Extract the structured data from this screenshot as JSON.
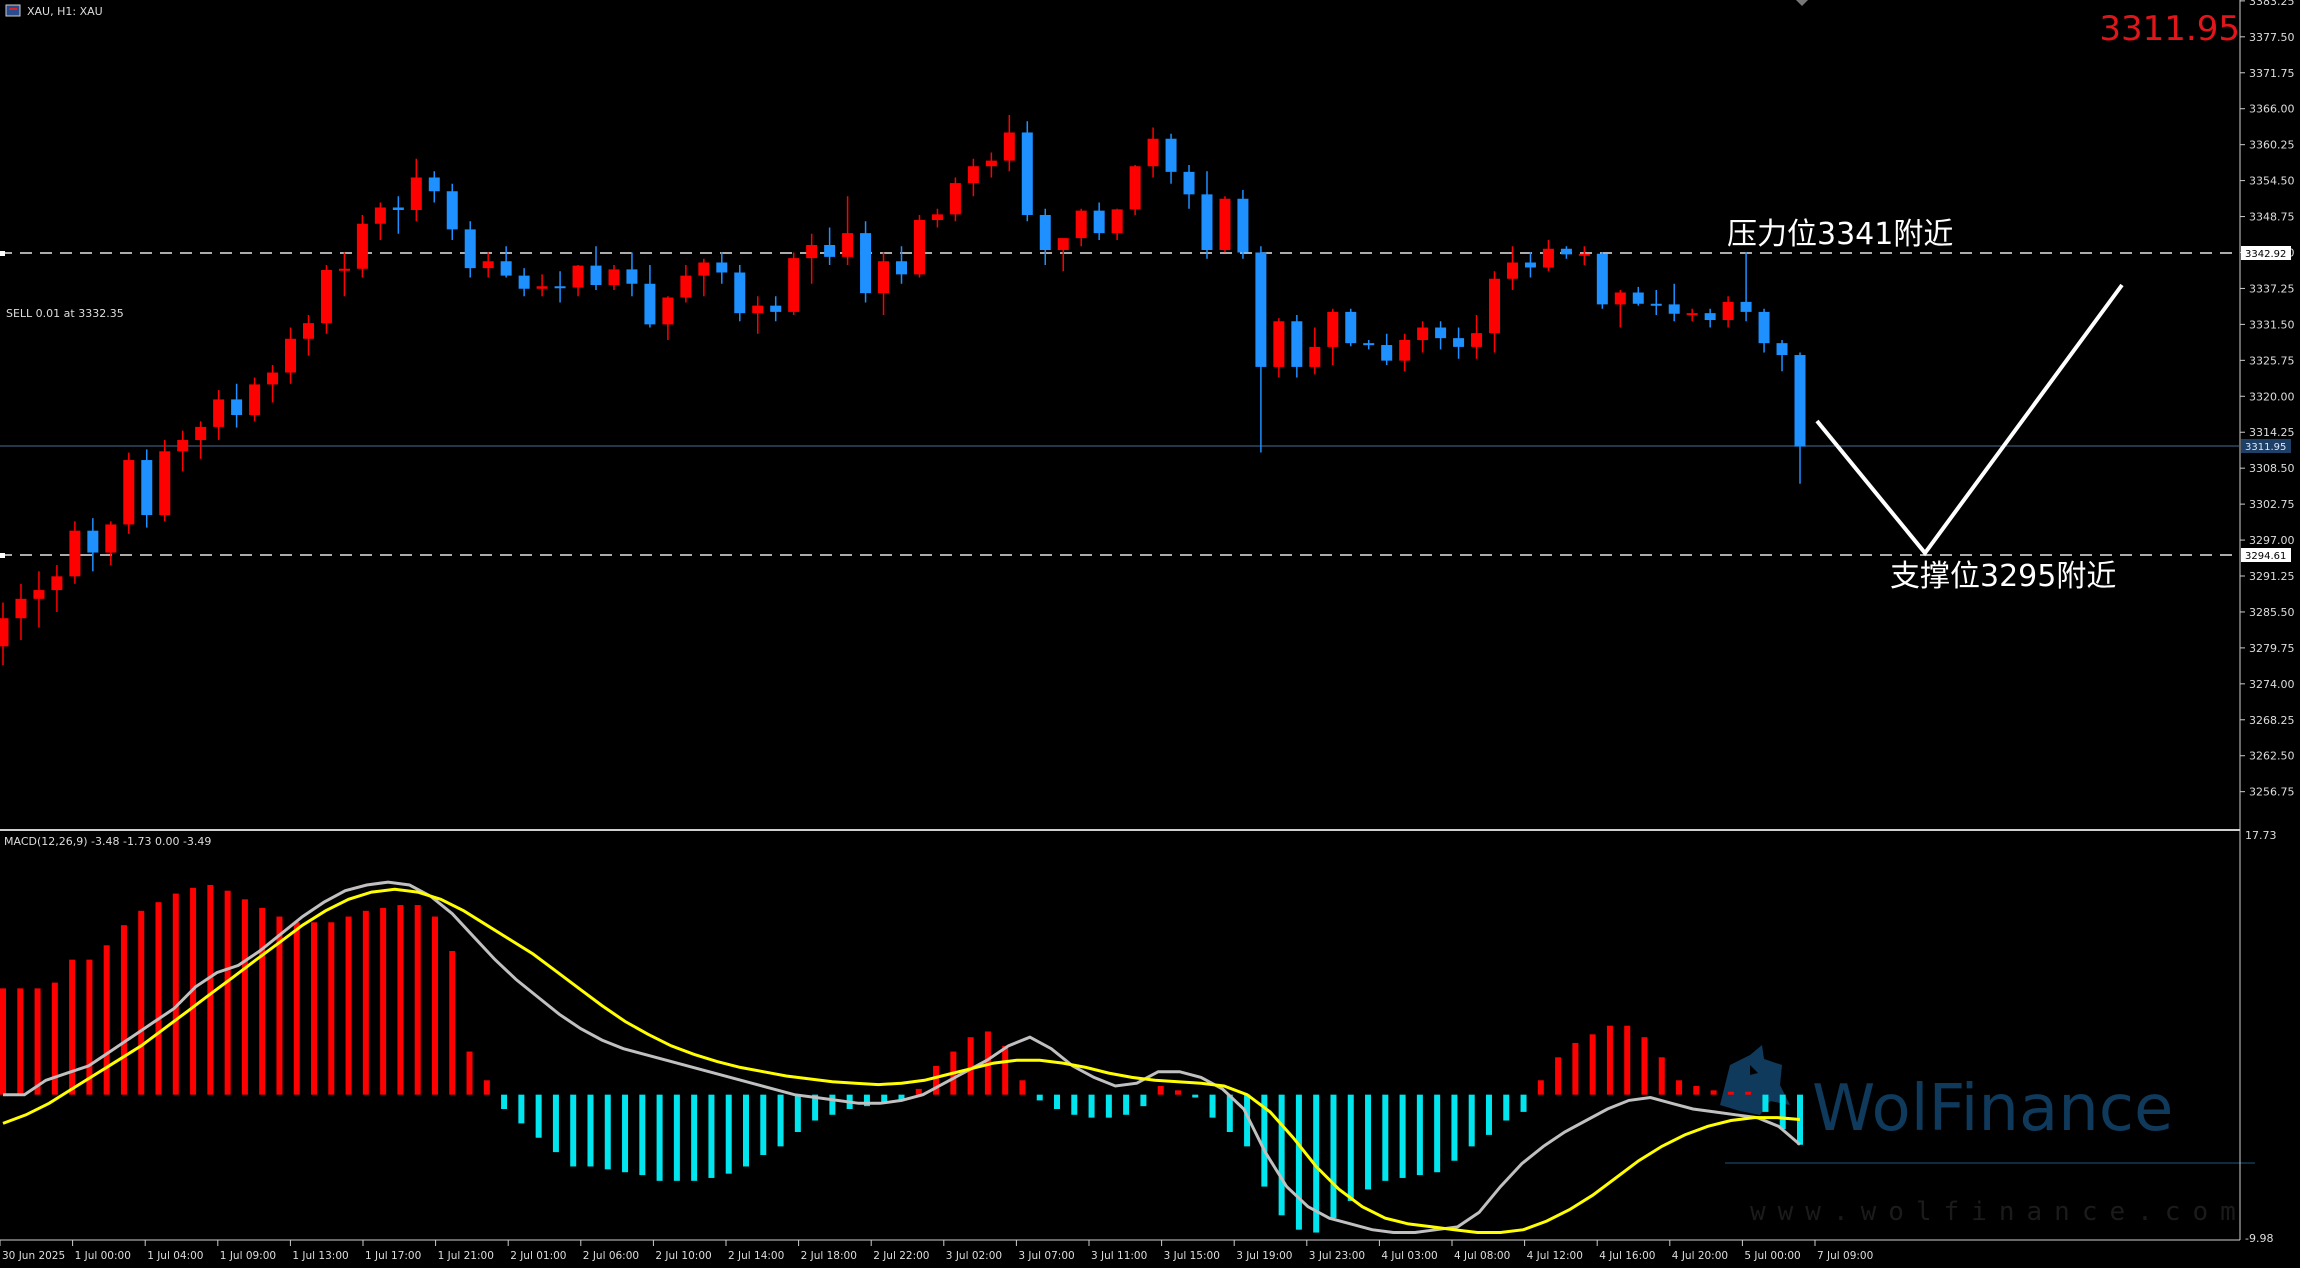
{
  "header": {
    "symbol_label": "XAU, H1: XAU",
    "current_price": "3311.95"
  },
  "order": {
    "label": "SELL 0.01 at 3332.35"
  },
  "annotations": {
    "resistance": "压力位3341附近",
    "support": "支撑位3295附近"
  },
  "price_axis": {
    "ticks": [
      "3383.25",
      "3377.50",
      "3371.75",
      "3366.00",
      "3360.25",
      "3354.50",
      "3348.75",
      "3343.00",
      "3337.25",
      "3331.50",
      "3325.75",
      "3320.00",
      "3314.25",
      "3308.50",
      "3302.75",
      "3297.00",
      "3291.25",
      "3285.50",
      "3279.75",
      "3274.00",
      "3268.25",
      "3262.50",
      "3256.75"
    ],
    "resistance_tag": "3342.92",
    "current_tag": "3311.95",
    "support_tag": "3294.61"
  },
  "macd_panel": {
    "label": "MACD(12,26,9) -3.48 -1.73 0.00 -3.49",
    "max_label": "17.73",
    "min_label": "-9.98"
  },
  "time_axis": [
    "30 Jun 2025",
    "1 Jul 00:00",
    "1 Jul 04:00",
    "1 Jul 09:00",
    "1 Jul 13:00",
    "1 Jul 17:00",
    "1 Jul 21:00",
    "2 Jul 01:00",
    "2 Jul 06:00",
    "2 Jul 10:00",
    "2 Jul 14:00",
    "2 Jul 18:00",
    "2 Jul 22:00",
    "3 Jul 02:00",
    "3 Jul 07:00",
    "3 Jul 11:00",
    "3 Jul 15:00",
    "3 Jul 19:00",
    "3 Jul 23:00",
    "4 Jul 03:00",
    "4 Jul 08:00",
    "4 Jul 12:00",
    "4 Jul 16:00",
    "4 Jul 20:00",
    "5 Jul 00:00",
    "7 Jul 09:00"
  ],
  "watermark": {
    "brand": "WolFinance",
    "url": "www.wolfinance.com"
  },
  "colors": {
    "bull": "#ff0000",
    "bear": "#1e90ff",
    "hist_pos": "#ff0000",
    "hist_neg": "#00e5ee",
    "macd_line": "#c0c0c0",
    "signal_line": "#ffff00",
    "price_text": "#e0161b"
  },
  "chart_data": {
    "type": "candlestick",
    "symbol": "XAU",
    "timeframe": "H1",
    "ohlc": [
      [
        3280.0,
        3287.0,
        3277.0,
        3284.5
      ],
      [
        3284.5,
        3290.0,
        3281.0,
        3287.6
      ],
      [
        3287.6,
        3292.0,
        3283.0,
        3289.0
      ],
      [
        3289.0,
        3293.0,
        3285.5,
        3291.2
      ],
      [
        3291.2,
        3300.0,
        3290.0,
        3298.5
      ],
      [
        3298.5,
        3300.5,
        3292.0,
        3295.0
      ],
      [
        3295.0,
        3300.0,
        3293.0,
        3299.5
      ],
      [
        3299.5,
        3311.0,
        3298.0,
        3309.8
      ],
      [
        3309.8,
        3311.5,
        3299.0,
        3301.0
      ],
      [
        3301.0,
        3313.0,
        3300.0,
        3311.2
      ],
      [
        3311.2,
        3314.5,
        3308.0,
        3313.0
      ],
      [
        3313.0,
        3316.0,
        3310.0,
        3315.1
      ],
      [
        3315.1,
        3321.0,
        3313.0,
        3319.5
      ],
      [
        3319.5,
        3322.0,
        3315.0,
        3317.0
      ],
      [
        3317.0,
        3323.0,
        3316.0,
        3321.9
      ],
      [
        3321.9,
        3325.0,
        3319.0,
        3323.8
      ],
      [
        3323.8,
        3331.0,
        3322.0,
        3329.2
      ],
      [
        3329.2,
        3333.0,
        3326.5,
        3331.7
      ],
      [
        3331.7,
        3341.0,
        3330.0,
        3340.2
      ],
      [
        3340.2,
        3343.0,
        3336.0,
        3340.4
      ],
      [
        3340.4,
        3349.0,
        3339.0,
        3347.6
      ],
      [
        3347.6,
        3351.0,
        3345.0,
        3350.2
      ],
      [
        3350.2,
        3352.0,
        3346.0,
        3349.8
      ],
      [
        3349.8,
        3358.0,
        3348.0,
        3355.0
      ],
      [
        3355.0,
        3356.0,
        3351.0,
        3352.8
      ],
      [
        3352.8,
        3354.0,
        3345.0,
        3346.7
      ],
      [
        3346.7,
        3348.0,
        3339.0,
        3340.5
      ],
      [
        3340.5,
        3343.0,
        3339.0,
        3341.6
      ],
      [
        3341.6,
        3344.0,
        3339.0,
        3339.3
      ],
      [
        3339.3,
        3340.5,
        3336.0,
        3337.2
      ],
      [
        3337.2,
        3339.5,
        3336.0,
        3337.6
      ],
      [
        3337.6,
        3340.0,
        3335.0,
        3337.4
      ],
      [
        3337.4,
        3341.0,
        3336.0,
        3340.9
      ],
      [
        3340.9,
        3344.0,
        3337.0,
        3337.8
      ],
      [
        3337.8,
        3341.0,
        3337.0,
        3340.3
      ],
      [
        3340.3,
        3343.0,
        3336.0,
        3338.0
      ],
      [
        3338.0,
        3341.0,
        3331.0,
        3331.5
      ],
      [
        3331.5,
        3336.0,
        3329.0,
        3335.8
      ],
      [
        3335.8,
        3341.0,
        3335.0,
        3339.3
      ],
      [
        3339.3,
        3342.0,
        3336.0,
        3341.4
      ],
      [
        3341.4,
        3343.0,
        3338.0,
        3339.8
      ],
      [
        3339.8,
        3341.0,
        3332.0,
        3333.3
      ],
      [
        3333.3,
        3336.0,
        3330.0,
        3334.5
      ],
      [
        3334.5,
        3336.0,
        3332.0,
        3333.5
      ],
      [
        3333.5,
        3343.0,
        3333.0,
        3342.1
      ],
      [
        3342.1,
        3346.0,
        3338.0,
        3344.2
      ],
      [
        3344.2,
        3347.0,
        3341.0,
        3342.3
      ],
      [
        3342.3,
        3352.0,
        3341.0,
        3346.1
      ],
      [
        3346.1,
        3348.0,
        3335.0,
        3336.5
      ],
      [
        3336.5,
        3343.0,
        3333.0,
        3341.6
      ],
      [
        3341.6,
        3344.0,
        3338.0,
        3339.5
      ],
      [
        3339.5,
        3349.0,
        3339.0,
        3348.2
      ],
      [
        3348.2,
        3350.0,
        3347.0,
        3349.1
      ],
      [
        3349.1,
        3355.0,
        3348.0,
        3354.1
      ],
      [
        3354.1,
        3358.0,
        3352.0,
        3356.8
      ],
      [
        3356.8,
        3359.0,
        3355.0,
        3357.7
      ],
      [
        3357.7,
        3365.0,
        3356.0,
        3362.2
      ],
      [
        3362.2,
        3364.0,
        3348.0,
        3349.0
      ],
      [
        3349.0,
        3350.0,
        3341.0,
        3343.4
      ],
      [
        3343.4,
        3345.0,
        3340.0,
        3345.3
      ],
      [
        3345.3,
        3350.0,
        3344.0,
        3349.7
      ],
      [
        3349.7,
        3351.0,
        3345.0,
        3346.1
      ],
      [
        3346.1,
        3350.0,
        3345.0,
        3349.9
      ],
      [
        3349.9,
        3357.0,
        3349.0,
        3356.8
      ],
      [
        3356.8,
        3363.0,
        3355.0,
        3361.2
      ],
      [
        3361.2,
        3362.0,
        3354.0,
        3355.9
      ],
      [
        3355.9,
        3357.0,
        3350.0,
        3352.3
      ],
      [
        3352.3,
        3356.0,
        3342.0,
        3343.4
      ],
      [
        3343.4,
        3352.0,
        3343.0,
        3351.6
      ],
      [
        3351.6,
        3353.0,
        3342.0,
        3343.0
      ],
      [
        3343.0,
        3344.0,
        3311.0,
        3324.7
      ],
      [
        3324.7,
        3332.5,
        3323.0,
        3332.0
      ],
      [
        3332.0,
        3333.0,
        3323.0,
        3324.7
      ],
      [
        3324.7,
        3331.0,
        3323.5,
        3327.9
      ],
      [
        3327.9,
        3334.0,
        3325.0,
        3333.5
      ],
      [
        3333.5,
        3334.0,
        3328.0,
        3328.5
      ],
      [
        3328.5,
        3329.0,
        3327.5,
        3328.2
      ],
      [
        3328.2,
        3330.0,
        3325.0,
        3325.7
      ],
      [
        3325.7,
        3330.0,
        3324.0,
        3329.0
      ],
      [
        3329.0,
        3332.0,
        3327.0,
        3331.0
      ],
      [
        3331.0,
        3332.0,
        3327.5,
        3329.3
      ],
      [
        3329.3,
        3331.0,
        3326.0,
        3327.9
      ],
      [
        3327.9,
        3333.0,
        3326.0,
        3330.1
      ],
      [
        3330.1,
        3340.0,
        3327.0,
        3338.8
      ],
      [
        3338.8,
        3344.0,
        3337.0,
        3341.4
      ],
      [
        3341.4,
        3343.0,
        3339.0,
        3340.6
      ],
      [
        3340.6,
        3345.0,
        3340.0,
        3343.6
      ],
      [
        3343.6,
        3344.0,
        3342.0,
        3342.7
      ],
      [
        3342.7,
        3344.0,
        3341.0,
        3342.8
      ],
      [
        3342.8,
        3343.0,
        3334.0,
        3334.7
      ],
      [
        3334.7,
        3337.0,
        3331.0,
        3336.6
      ],
      [
        3336.6,
        3337.5,
        3334.5,
        3334.8
      ],
      [
        3334.8,
        3337.0,
        3333.0,
        3334.7
      ],
      [
        3334.7,
        3338.0,
        3332.0,
        3333.2
      ],
      [
        3333.2,
        3334.0,
        3332.0,
        3333.3
      ],
      [
        3333.3,
        3334.0,
        3331.0,
        3332.2
      ],
      [
        3332.2,
        3336.0,
        3331.0,
        3335.1
      ],
      [
        3335.1,
        3343.0,
        3332.0,
        3333.5
      ],
      [
        3333.5,
        3334.0,
        3327.0,
        3328.5
      ],
      [
        3328.5,
        3329.0,
        3324.0,
        3326.6
      ],
      [
        3326.6,
        3327.0,
        3306.0,
        3311.95
      ]
    ],
    "macd_histogram": [
      7.4,
      7.4,
      7.4,
      7.8,
      9.4,
      9.4,
      10.4,
      11.8,
      12.8,
      13.4,
      14.0,
      14.4,
      14.6,
      14.2,
      13.6,
      13.0,
      12.4,
      12.0,
      12.0,
      12.0,
      12.4,
      12.8,
      13.0,
      13.2,
      13.2,
      12.4,
      10.0,
      3.0,
      1.0,
      -1.0,
      -2.0,
      -3.0,
      -4.0,
      -5.0,
      -5.0,
      -5.2,
      -5.4,
      -5.6,
      -6.0,
      -6.0,
      -6.0,
      -5.8,
      -5.5,
      -5.0,
      -4.2,
      -3.6,
      -2.6,
      -1.8,
      -1.4,
      -1.0,
      -0.8,
      -0.6,
      -0.4,
      0.4,
      2.0,
      3.0,
      4.0,
      4.4,
      3.4,
      1.0,
      -0.4,
      -1.0,
      -1.4,
      -1.6,
      -1.6,
      -1.4,
      -0.8,
      0.6,
      0.3,
      -0.2,
      -1.6,
      -2.6,
      -3.6,
      -6.4,
      -8.4,
      -9.4,
      -9.6,
      -8.6,
      -7.4,
      -6.6,
      -6.0,
      -5.8,
      -5.6,
      -5.4,
      -4.6,
      -3.6,
      -2.8,
      -1.8,
      -1.2,
      1.0,
      2.6,
      3.6,
      4.2,
      4.8,
      4.8,
      4.0,
      2.6,
      1.0,
      0.6,
      0.3,
      0.2,
      0.2,
      -1.2,
      -2.4,
      -3.49
    ],
    "macd_line": [
      0,
      0.0,
      1.0,
      1.5,
      2.0,
      3.0,
      4.0,
      5.0,
      6.0,
      7.5,
      8.5,
      9.0,
      10.0,
      11.2,
      12.4,
      13.4,
      14.2,
      14.6,
      14.8,
      14.6,
      13.8,
      12.6,
      11.0,
      9.4,
      8.0,
      6.8,
      5.6,
      4.6,
      3.8,
      3.2,
      2.8,
      2.4,
      2.0,
      1.6,
      1.2,
      0.8,
      0.4,
      0.0,
      -0.2,
      -0.4,
      -0.6,
      -0.6,
      -0.4,
      0.0,
      0.8,
      1.6,
      2.4,
      3.4,
      4.0,
      3.2,
      2.0,
      1.2,
      0.6,
      0.8,
      1.6,
      1.6,
      1.2,
      0.4,
      -1.0,
      -4.0,
      -6.4,
      -7.8,
      -8.6,
      -9.0,
      -9.4,
      -9.6,
      -9.6,
      -9.4,
      -9.2,
      -8.2,
      -6.4,
      -4.8,
      -3.6,
      -2.6,
      -1.8,
      -1.0,
      -0.4,
      -0.2,
      -0.6,
      -1.0,
      -1.2,
      -1.4,
      -1.6,
      -2.2,
      -3.48
    ],
    "signal_line": [
      -2.0,
      -1.4,
      -0.6,
      0.4,
      1.4,
      2.4,
      3.4,
      4.6,
      5.8,
      7.0,
      8.2,
      9.4,
      10.6,
      11.8,
      12.8,
      13.6,
      14.1,
      14.3,
      14.1,
      13.6,
      12.8,
      11.8,
      10.8,
      9.8,
      8.6,
      7.4,
      6.2,
      5.1,
      4.2,
      3.4,
      2.8,
      2.3,
      1.9,
      1.6,
      1.3,
      1.1,
      0.9,
      0.8,
      0.7,
      0.8,
      1.0,
      1.4,
      1.8,
      2.2,
      2.4,
      2.4,
      2.2,
      1.9,
      1.5,
      1.2,
      1.0,
      0.9,
      0.8,
      0.6,
      0.0,
      -1.2,
      -3.0,
      -5.0,
      -6.6,
      -7.8,
      -8.6,
      -9.0,
      -9.2,
      -9.4,
      -9.6,
      -9.6,
      -9.4,
      -8.8,
      -8.0,
      -7.0,
      -5.8,
      -4.6,
      -3.6,
      -2.8,
      -2.2,
      -1.8,
      -1.6,
      -1.6,
      -1.73
    ]
  }
}
